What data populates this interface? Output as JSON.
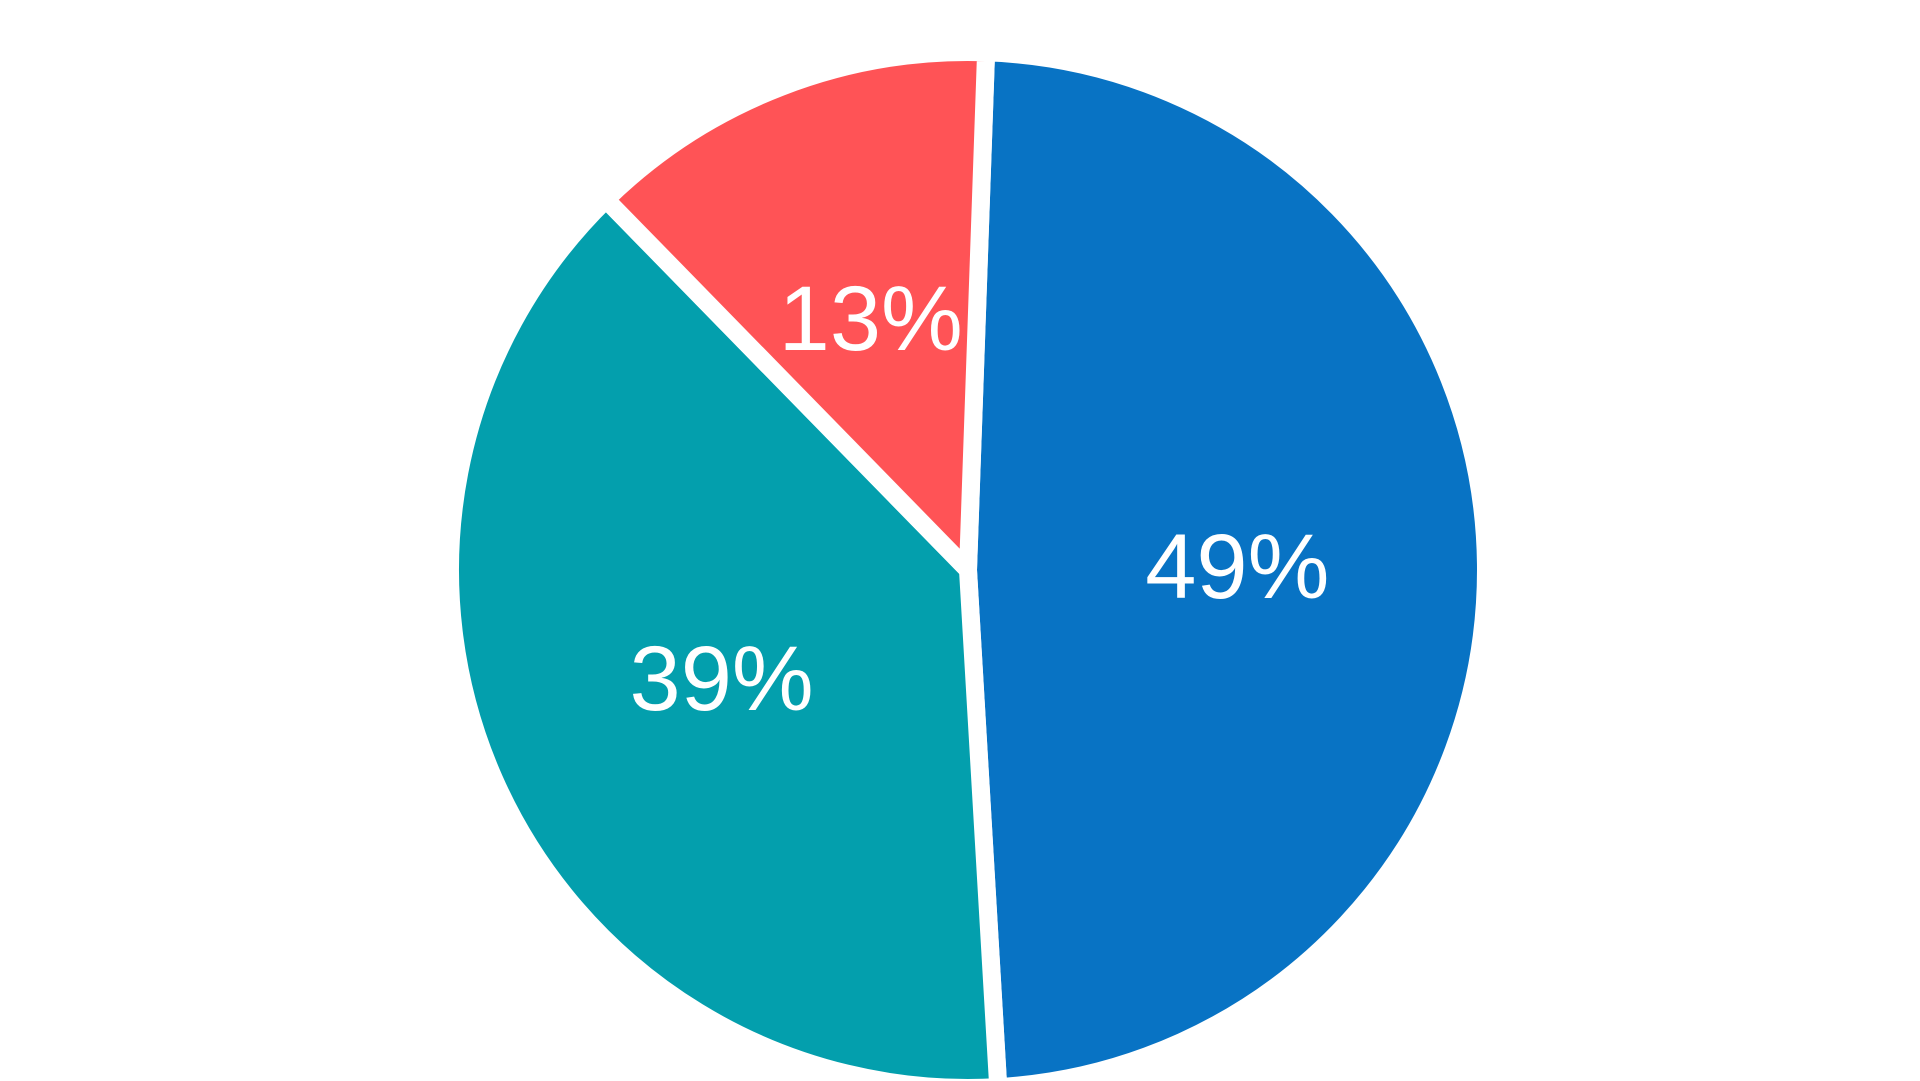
{
  "chart_data": {
    "type": "pie",
    "title": "",
    "slices": [
      {
        "label": "49%",
        "value": 49,
        "color": "#0873C4"
      },
      {
        "label": "39%",
        "value": 39,
        "color": "#039FAD"
      },
      {
        "label": "13%",
        "value": 13,
        "color": "#FF5356"
      }
    ],
    "legend": "none"
  }
}
